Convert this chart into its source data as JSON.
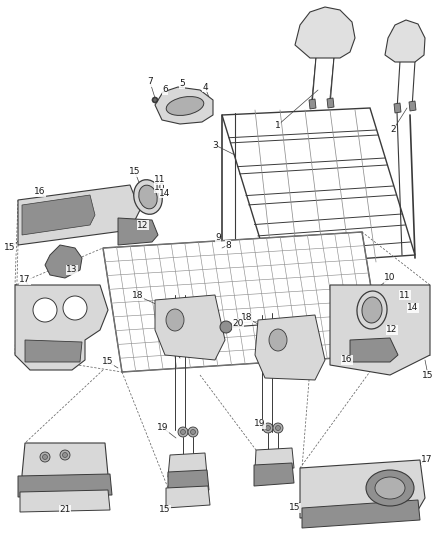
{
  "bg_color": "#ffffff",
  "fig_width": 4.38,
  "fig_height": 5.33,
  "dpi": 100,
  "line_color": "#3a3a3a",
  "gray1": "#c8c8c8",
  "gray2": "#b0b0b0",
  "gray3": "#909090",
  "gray4": "#d8d8d8",
  "gray5": "#e0e0e0",
  "label_fontsize": 6.5,
  "label_color": "#1a1a1a",
  "leader_color": "#444444",
  "dashed_color": "#666666"
}
